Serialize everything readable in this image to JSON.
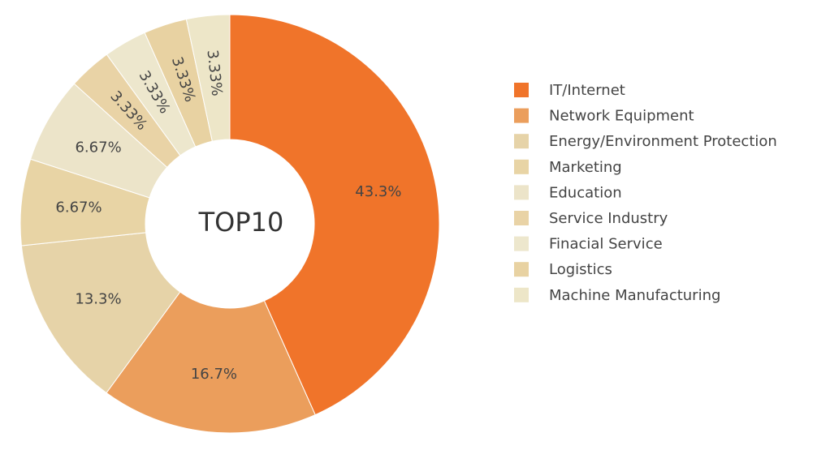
{
  "chart_data": {
    "type": "pie",
    "center_label": "TOP10",
    "legend_position": "right",
    "slices": [
      {
        "name": "IT/Internet",
        "value": 43.3,
        "label": "43.3%",
        "color": "#f0742a"
      },
      {
        "name": "Network Equipment",
        "value": 16.7,
        "label": "16.7%",
        "color": "#eb9e5c"
      },
      {
        "name": "Energy/Environment Protection",
        "value": 13.3,
        "label": "13.3%",
        "color": "#e6d3a8"
      },
      {
        "name": "Marketing",
        "value": 6.67,
        "label": "6.67%",
        "color": "#e8d4a5"
      },
      {
        "name": "Education",
        "value": 6.67,
        "label": "6.67%",
        "color": "#ece4c9"
      },
      {
        "name": "Service Industry",
        "value": 3.33,
        "label": "3.33%",
        "color": "#e9d3a6"
      },
      {
        "name": "Finacial Service",
        "value": 3.33,
        "label": "3.33%",
        "color": "#ede7cd"
      },
      {
        "name": "Logistics",
        "value": 3.33,
        "label": "3.33%",
        "color": "#e8d2a2"
      },
      {
        "name": "Machine Manufacturing",
        "value": 3.33,
        "label": "3.33%",
        "color": "#ede6c8"
      }
    ]
  }
}
